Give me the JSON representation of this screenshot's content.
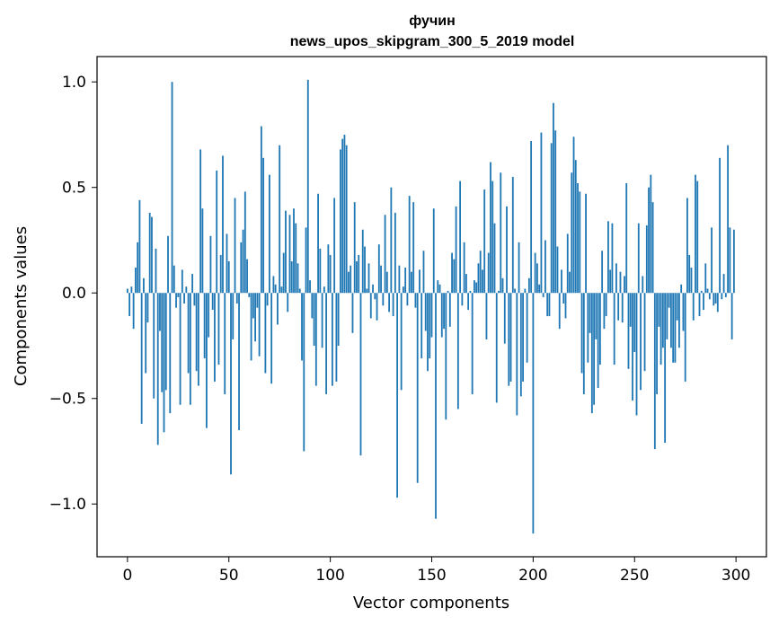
{
  "chart_data": {
    "type": "bar",
    "title": "фучин",
    "subtitle": "news_upos_skipgram_300_5_2019 model",
    "xlabel": "Vector components",
    "ylabel": "Components values",
    "xlim": [
      -15,
      315
    ],
    "ylim": [
      -1.25,
      1.12
    ],
    "xticks": [
      0,
      50,
      100,
      150,
      200,
      250,
      300
    ],
    "yticks": [
      -1.0,
      -0.5,
      0.0,
      0.5,
      1.0
    ],
    "xtick_labels": [
      "0",
      "50",
      "100",
      "150",
      "200",
      "250",
      "300"
    ],
    "ytick_labels": [
      "−1.0",
      "−0.5",
      "0.0",
      "0.5",
      "1.0"
    ],
    "bar_color": "#1f77b4",
    "grid": false,
    "values": [
      0.02,
      -0.11,
      0.03,
      -0.17,
      0.12,
      0.24,
      0.44,
      -0.62,
      0.07,
      -0.38,
      -0.14,
      0.38,
      0.36,
      -0.5,
      0.21,
      -0.72,
      -0.18,
      -0.47,
      -0.66,
      -0.46,
      0.27,
      -0.57,
      1.0,
      0.13,
      -0.07,
      -0.02,
      -0.53,
      0.11,
      -0.05,
      0.03,
      -0.38,
      -0.53,
      0.09,
      -0.06,
      -0.37,
      -0.44,
      0.68,
      0.4,
      -0.31,
      -0.64,
      -0.21,
      0.27,
      -0.08,
      -0.42,
      0.58,
      -0.34,
      0.18,
      0.65,
      -0.48,
      0.28,
      0.15,
      -0.86,
      -0.22,
      0.45,
      -0.05,
      -0.65,
      0.24,
      0.3,
      0.48,
      0.16,
      -0.02,
      -0.32,
      -0.12,
      -0.23,
      -0.07,
      -0.3,
      0.79,
      0.64,
      -0.38,
      -0.06,
      0.56,
      -0.43,
      0.08,
      0.04,
      -0.15,
      0.7,
      0.03,
      0.19,
      0.39,
      -0.09,
      0.37,
      0.15,
      0.4,
      0.33,
      0.14,
      0.02,
      -0.32,
      -0.75,
      0.31,
      1.01,
      0.06,
      -0.12,
      -0.25,
      -0.44,
      0.47,
      0.21,
      -0.26,
      0.03,
      -0.48,
      0.23,
      0.18,
      -0.44,
      0.45,
      -0.42,
      -0.25,
      0.68,
      0.73,
      0.75,
      0.7,
      0.1,
      0.13,
      -0.19,
      0.43,
      0.15,
      0.18,
      -0.77,
      0.3,
      0.22,
      0.02,
      0.14,
      -0.12,
      0.04,
      -0.03,
      -0.13,
      0.23,
      0.13,
      -0.06,
      0.37,
      0.1,
      -0.09,
      0.5,
      -0.11,
      0.38,
      -0.97,
      0.13,
      -0.46,
      0.03,
      0.12,
      -0.06,
      0.46,
      0.1,
      0.43,
      -0.07,
      -0.9,
      0.11,
      -0.31,
      0.2,
      -0.18,
      -0.37,
      -0.31,
      -0.21,
      0.4,
      -1.07,
      0.06,
      0.04,
      -0.21,
      -0.17,
      -0.6,
      0.01,
      -0.16,
      0.19,
      0.16,
      0.41,
      -0.55,
      0.53,
      -0.06,
      0.24,
      0.09,
      -0.08,
      0.01,
      -0.48,
      0.06,
      0.05,
      0.14,
      0.2,
      0.11,
      0.49,
      -0.22,
      0.19,
      0.62,
      0.53,
      0.33,
      -0.52,
      0.01,
      0.57,
      0.07,
      -0.24,
      0.41,
      -0.44,
      -0.42,
      0.55,
      0.02,
      -0.58,
      0.24,
      -0.49,
      -0.42,
      0.02,
      -0.33,
      0.07,
      0.72,
      -1.14,
      0.19,
      0.14,
      0.04,
      0.76,
      -0.02,
      0.25,
      -0.11,
      -0.11,
      0.71,
      0.9,
      0.77,
      0.22,
      -0.17,
      0.11,
      -0.05,
      -0.12,
      0.28,
      0.1,
      0.57,
      0.74,
      0.63,
      0.52,
      0.48,
      -0.38,
      -0.48,
      0.47,
      -0.33,
      -0.19,
      -0.57,
      -0.53,
      -0.22,
      -0.45,
      -0.34,
      0.2,
      -0.17,
      -0.11,
      0.34,
      0.11,
      0.33,
      -0.34,
      0.14,
      -0.13,
      0.1,
      -0.14,
      0.08,
      0.52,
      -0.36,
      -0.16,
      -0.51,
      -0.28,
      -0.58,
      0.33,
      -0.46,
      0.08,
      -0.37,
      0.32,
      0.5,
      0.56,
      0.43,
      -0.74,
      -0.48,
      -0.16,
      -0.34,
      -0.26,
      -0.71,
      -0.22,
      -0.07,
      -0.26,
      -0.33,
      -0.33,
      -0.13,
      -0.26,
      0.04,
      -0.18,
      -0.42,
      0.45,
      0.18,
      0.12,
      -0.13,
      0.56,
      0.53,
      -0.11,
      0.01,
      -0.08,
      0.14,
      0.02,
      -0.03,
      0.31,
      -0.06,
      -0.05,
      -0.09,
      0.64,
      -0.03,
      0.09,
      -0.02,
      0.7,
      0.31,
      -0.22,
      0.3
    ]
  }
}
